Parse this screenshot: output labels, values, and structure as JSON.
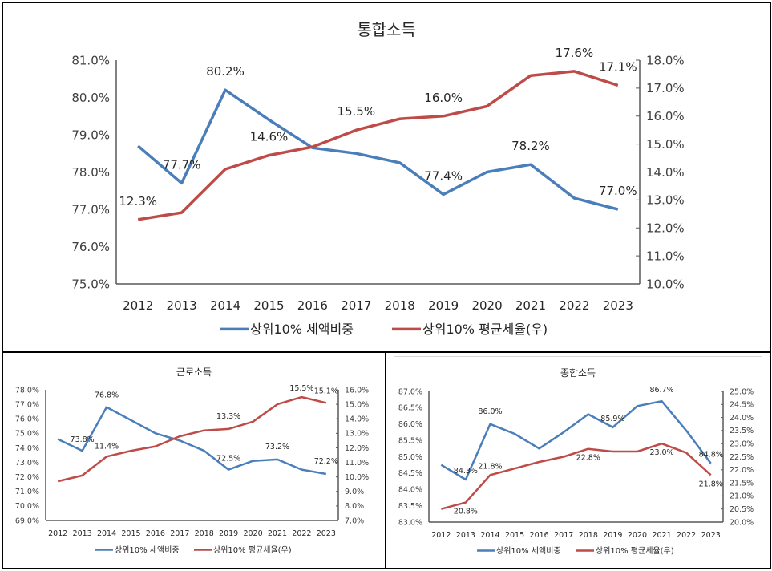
{
  "chart_data": [
    {
      "id": "main",
      "type": "line",
      "title": "통합소득",
      "categories": [
        "2012",
        "2013",
        "2014",
        "2015",
        "2016",
        "2017",
        "2018",
        "2019",
        "2020",
        "2021",
        "2022",
        "2023"
      ],
      "y_left": {
        "min": 75.0,
        "max": 81.0,
        "step": 1.0,
        "decimals": 1,
        "ticks": [
          "75.0%",
          "76.0%",
          "77.0%",
          "78.0%",
          "79.0%",
          "80.0%",
          "81.0%"
        ]
      },
      "y_right": {
        "min": 10.0,
        "max": 18.0,
        "step": 1.0,
        "decimals": 1,
        "ticks": [
          "10.0%",
          "11.0%",
          "12.0%",
          "13.0%",
          "14.0%",
          "15.0%",
          "16.0%",
          "17.0%",
          "18.0%"
        ]
      },
      "series": [
        {
          "name": "상위10% 세액비중",
          "axis": "left",
          "color": "#4a7ebb",
          "values": [
            78.7,
            77.7,
            80.2,
            79.4,
            78.65,
            78.5,
            78.25,
            77.4,
            78.0,
            78.2,
            77.3,
            77.0
          ],
          "labels": [
            {
              "index": 1,
              "text": "77.7%"
            },
            {
              "index": 2,
              "text": "80.2%"
            },
            {
              "index": 7,
              "text": "77.4%"
            },
            {
              "index": 9,
              "text": "78.2%"
            },
            {
              "index": 11,
              "text": "77.0%"
            }
          ]
        },
        {
          "name": "상위10% 평균세율(우)",
          "axis": "right",
          "color": "#be4b48",
          "values": [
            12.3,
            12.55,
            14.1,
            14.6,
            14.9,
            15.5,
            15.9,
            16.0,
            16.35,
            17.45,
            17.6,
            17.1
          ],
          "labels": [
            {
              "index": 0,
              "text": "12.3%"
            },
            {
              "index": 3,
              "text": "14.6%"
            },
            {
              "index": 5,
              "text": "15.5%"
            },
            {
              "index": 7,
              "text": "16.0%"
            },
            {
              "index": 10,
              "text": "17.6%"
            },
            {
              "index": 11,
              "text": "17.1%"
            }
          ]
        }
      ],
      "legend": [
        "상위10% 세액비중",
        "상위10% 평균세율(우)"
      ],
      "legend_position": "bottom",
      "grid": false
    },
    {
      "id": "left",
      "type": "line",
      "title": "근로소득",
      "categories": [
        "2012",
        "2013",
        "2014",
        "2015",
        "2016",
        "2017",
        "2018",
        "2019",
        "2020",
        "2021",
        "2022",
        "2023"
      ],
      "y_left": {
        "min": 69.0,
        "max": 78.0,
        "step": 1.0,
        "decimals": 1,
        "ticks": [
          "69.0%",
          "70.0%",
          "71.0%",
          "72.0%",
          "73.0%",
          "74.0%",
          "75.0%",
          "76.0%",
          "77.0%",
          "78.0%"
        ]
      },
      "y_right": {
        "min": 7.0,
        "max": 16.0,
        "step": 1.0,
        "decimals": 1,
        "ticks": [
          "7.0%",
          "8.0%",
          "9.0%",
          "10.0%",
          "11.0%",
          "12.0%",
          "13.0%",
          "14.0%",
          "15.0%",
          "16.0%"
        ]
      },
      "series": [
        {
          "name": "상위10% 세액비중",
          "axis": "left",
          "color": "#4a7ebb",
          "values": [
            74.6,
            73.8,
            76.8,
            75.9,
            75.0,
            74.5,
            73.8,
            72.5,
            73.1,
            73.2,
            72.5,
            72.2
          ],
          "labels": [
            {
              "index": 1,
              "text": "73.8%"
            },
            {
              "index": 2,
              "text": "76.8%"
            },
            {
              "index": 7,
              "text": "72.5%"
            },
            {
              "index": 9,
              "text": "73.2%"
            },
            {
              "index": 11,
              "text": "72.2%"
            }
          ]
        },
        {
          "name": "상위10% 평균세율(우)",
          "axis": "right",
          "color": "#be4b48",
          "values": [
            9.7,
            10.1,
            11.4,
            11.8,
            12.1,
            12.8,
            13.2,
            13.3,
            13.8,
            15.0,
            15.5,
            15.1
          ],
          "labels": [
            {
              "index": 2,
              "text": "11.4%"
            },
            {
              "index": 7,
              "text": "13.3%"
            },
            {
              "index": 10,
              "text": "15.5%"
            },
            {
              "index": 11,
              "text": "15.1%"
            }
          ]
        }
      ],
      "legend": [
        "상위10% 세액비중",
        "상위10% 평균세율(우)"
      ],
      "legend_position": "bottom",
      "grid": false
    },
    {
      "id": "right",
      "type": "line",
      "title": "종합소득",
      "categories": [
        "2012",
        "2013",
        "2014",
        "2015",
        "2016",
        "2017",
        "2018",
        "2019",
        "2020",
        "2021",
        "2022",
        "2023"
      ],
      "y_left": {
        "min": 83.0,
        "max": 87.0,
        "step": 0.5,
        "decimals": 1,
        "ticks": [
          "83.0%",
          "83.5%",
          "84.0%",
          "84.5%",
          "85.0%",
          "85.5%",
          "86.0%",
          "86.5%",
          "87.0%"
        ]
      },
      "y_right": {
        "min": 20.0,
        "max": 25.0,
        "step": 0.5,
        "decimals": 1,
        "ticks": [
          "20.0%",
          "20.5%",
          "21.0%",
          "21.5%",
          "22.0%",
          "22.5%",
          "23.0%",
          "23.5%",
          "24.0%",
          "24.5%",
          "25.0%"
        ]
      },
      "series": [
        {
          "name": "상위10% 세액비중",
          "axis": "left",
          "color": "#4a7ebb",
          "values": [
            84.75,
            84.3,
            86.0,
            85.7,
            85.25,
            85.75,
            86.3,
            85.9,
            86.55,
            86.7,
            85.8,
            84.8
          ],
          "labels": [
            {
              "index": 1,
              "text": "84.3%"
            },
            {
              "index": 2,
              "text": "86.0%"
            },
            {
              "index": 7,
              "text": "85.9%"
            },
            {
              "index": 9,
              "text": "86.7%"
            },
            {
              "index": 11,
              "text": "84.8%"
            }
          ]
        },
        {
          "name": "상위10% 평균세율(우)",
          "axis": "right",
          "color": "#be4b48",
          "values": [
            20.5,
            20.75,
            21.8,
            22.05,
            22.3,
            22.5,
            22.8,
            22.7,
            22.7,
            23.0,
            22.65,
            21.8
          ],
          "labels": [
            {
              "index": 1,
              "text": "20.8%"
            },
            {
              "index": 2,
              "text": "21.8%"
            },
            {
              "index": 6,
              "text": "22.8%"
            },
            {
              "index": 9,
              "text": "23.0%"
            },
            {
              "index": 11,
              "text": "21.8%"
            }
          ]
        }
      ],
      "legend": [
        "상위10% 세액비중",
        "상위10% 평균세율(우)"
      ],
      "legend_position": "bottom",
      "grid": false
    }
  ]
}
